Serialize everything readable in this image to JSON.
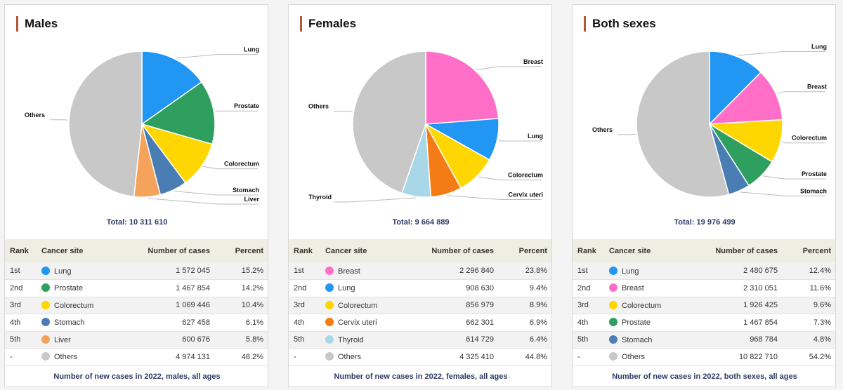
{
  "chart_data": [
    {
      "type": "pie",
      "title": "Males",
      "total_label": "Total: 10 311 610",
      "caption": "Number of new cases in 2022, males, all ages",
      "headers": {
        "rank": "Rank",
        "site": "Cancer site",
        "cases": "Number of cases",
        "percent": "Percent"
      },
      "slices": [
        {
          "label": "Lung",
          "value": 15.2,
          "color": "#2196f3"
        },
        {
          "label": "Prostate",
          "value": 14.2,
          "color": "#2e9f5e"
        },
        {
          "label": "Colorectum",
          "value": 10.4,
          "color": "#ffd600"
        },
        {
          "label": "Stomach",
          "value": 6.1,
          "color": "#4a7db4"
        },
        {
          "label": "Liver",
          "value": 5.8,
          "color": "#f5a25a"
        },
        {
          "label": "Others",
          "value": 48.2,
          "color": "#c8c8c8"
        }
      ],
      "rows": [
        {
          "rank": "1st",
          "site": "Lung",
          "cases": "1 572 045",
          "percent": "15.2%",
          "color": "#2196f3"
        },
        {
          "rank": "2nd",
          "site": "Prostate",
          "cases": "1 467 854",
          "percent": "14.2%",
          "color": "#2e9f5e"
        },
        {
          "rank": "3rd",
          "site": "Colorectum",
          "cases": "1 069 446",
          "percent": "10.4%",
          "color": "#ffd600"
        },
        {
          "rank": "4th",
          "site": "Stomach",
          "cases": "627 458",
          "percent": "6.1%",
          "color": "#4a7db4"
        },
        {
          "rank": "5th",
          "site": "Liver",
          "cases": "600 676",
          "percent": "5.8%",
          "color": "#f5a25a"
        },
        {
          "rank": "-",
          "site": "Others",
          "cases": "4 974 131",
          "percent": "48.2%",
          "color": "#c8c8c8"
        }
      ]
    },
    {
      "type": "pie",
      "title": "Females",
      "total_label": "Total: 9 664 889",
      "caption": "Number of new cases in 2022, females, all ages",
      "headers": {
        "rank": "Rank",
        "site": "Cancer site",
        "cases": "Number of cases",
        "percent": "Percent"
      },
      "slices": [
        {
          "label": "Breast",
          "value": 23.8,
          "color": "#ff6ec7"
        },
        {
          "label": "Lung",
          "value": 9.4,
          "color": "#2196f3"
        },
        {
          "label": "Colorectum",
          "value": 8.9,
          "color": "#ffd600"
        },
        {
          "label": "Cervix uteri",
          "value": 6.9,
          "color": "#f57c14"
        },
        {
          "label": "Thyroid",
          "value": 6.4,
          "color": "#a8d8e8"
        },
        {
          "label": "Others",
          "value": 44.8,
          "color": "#c8c8c8"
        }
      ],
      "rows": [
        {
          "rank": "1st",
          "site": "Breast",
          "cases": "2 296 840",
          "percent": "23.8%",
          "color": "#ff6ec7"
        },
        {
          "rank": "2nd",
          "site": "Lung",
          "cases": "908 630",
          "percent": "9.4%",
          "color": "#2196f3"
        },
        {
          "rank": "3rd",
          "site": "Colorectum",
          "cases": "856 979",
          "percent": "8.9%",
          "color": "#ffd600"
        },
        {
          "rank": "4th",
          "site": "Cervix uteri",
          "cases": "662 301",
          "percent": "6.9%",
          "color": "#f57c14"
        },
        {
          "rank": "5th",
          "site": "Thyroid",
          "cases": "614 729",
          "percent": "6.4%",
          "color": "#a8d8e8"
        },
        {
          "rank": "-",
          "site": "Others",
          "cases": "4 325 410",
          "percent": "44.8%",
          "color": "#c8c8c8"
        }
      ]
    },
    {
      "type": "pie",
      "title": "Both sexes",
      "total_label": "Total: 19 976 499",
      "caption": "Number of new cases in 2022, both sexes, all ages",
      "headers": {
        "rank": "Rank",
        "site": "Cancer site",
        "cases": "Number of cases",
        "percent": "Percent"
      },
      "slices": [
        {
          "label": "Lung",
          "value": 12.4,
          "color": "#2196f3"
        },
        {
          "label": "Breast",
          "value": 11.6,
          "color": "#ff6ec7"
        },
        {
          "label": "Colorectum",
          "value": 9.6,
          "color": "#ffd600"
        },
        {
          "label": "Prostate",
          "value": 7.3,
          "color": "#2e9f5e"
        },
        {
          "label": "Stomach",
          "value": 4.8,
          "color": "#4a7db4"
        },
        {
          "label": "Others",
          "value": 54.2,
          "color": "#c8c8c8"
        }
      ],
      "rows": [
        {
          "rank": "1st",
          "site": "Lung",
          "cases": "2 480 675",
          "percent": "12.4%",
          "color": "#2196f3"
        },
        {
          "rank": "2nd",
          "site": "Breast",
          "cases": "2 310 051",
          "percent": "11.6%",
          "color": "#ff6ec7"
        },
        {
          "rank": "3rd",
          "site": "Colorectum",
          "cases": "1 926 425",
          "percent": "9.6%",
          "color": "#ffd600"
        },
        {
          "rank": "4th",
          "site": "Prostate",
          "cases": "1 467 854",
          "percent": "7.3%",
          "color": "#2e9f5e"
        },
        {
          "rank": "5th",
          "site": "Stomach",
          "cases": "968 784",
          "percent": "4.8%",
          "color": "#4a7db4"
        },
        {
          "rank": "-",
          "site": "Others",
          "cases": "10 822 710",
          "percent": "54.2%",
          "color": "#c8c8c8"
        }
      ]
    }
  ]
}
